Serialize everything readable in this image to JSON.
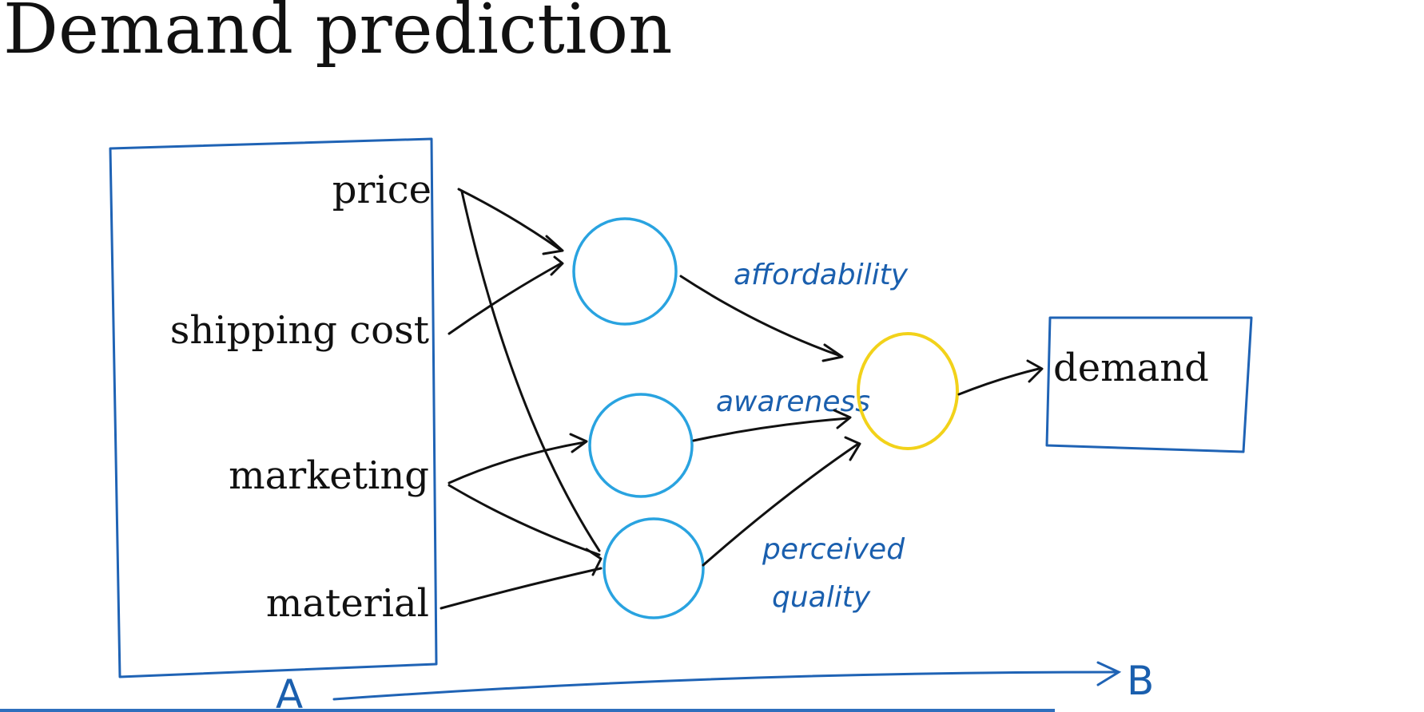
{
  "title": "Demand prediction",
  "inputs": [
    "price",
    "shipping cost",
    "marketing",
    "material"
  ],
  "output": "demand",
  "hidden_labels": {
    "affordability": "affordability",
    "awareness": "awareness",
    "perceived": "perceived",
    "quality": "quality"
  },
  "bottom_labels": {
    "start": "A",
    "end": "B"
  },
  "colors": {
    "box_stroke": "#1f63b5",
    "hidden_node": "#29a3e0",
    "output_node": "#f2d21a",
    "handwriting": "#1a5fae",
    "ink": "#111111"
  }
}
